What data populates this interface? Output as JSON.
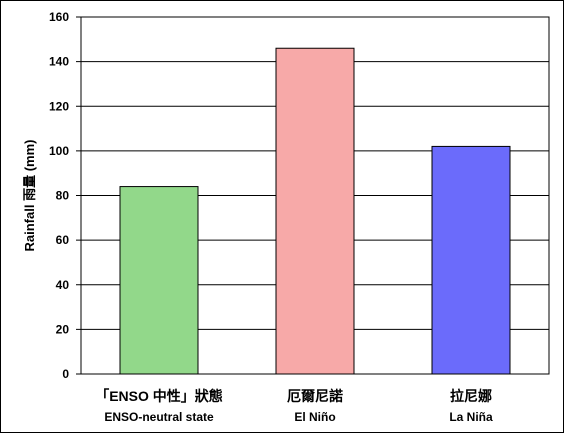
{
  "chart_data": {
    "type": "bar",
    "categories": [
      {
        "line1": "「ENSO 中性」狀態",
        "line2": "ENSO-neutral state"
      },
      {
        "line1": "厄爾尼諾",
        "line2": "El Niño"
      },
      {
        "line1": "拉尼娜",
        "line2": "La Niña"
      }
    ],
    "values": [
      84,
      146,
      102
    ],
    "colors": [
      "#92d88a",
      "#f7a9a8",
      "#6b6bfb"
    ],
    "title": "",
    "xlabel": "",
    "ylabel": "Rainfall 雨量 (mm)",
    "ylim": [
      0,
      160
    ],
    "yticks": [
      0,
      20,
      40,
      60,
      80,
      100,
      120,
      140,
      160
    ],
    "grid": true
  }
}
